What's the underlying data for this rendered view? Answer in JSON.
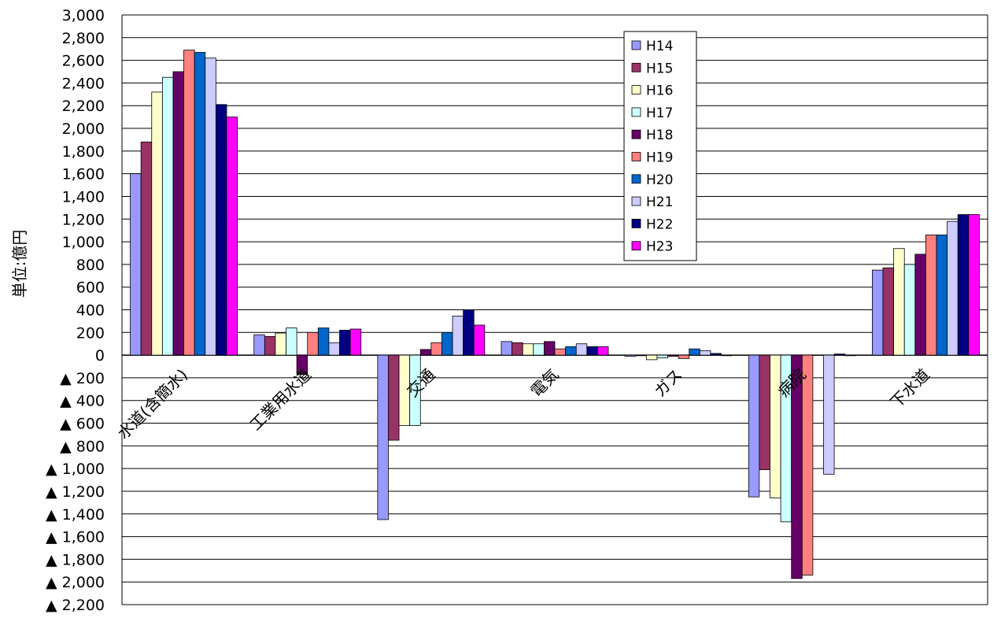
{
  "chart_data": {
    "type": "bar",
    "ylabel": "単位:億円",
    "ylim": [
      -2200,
      3000
    ],
    "ytick_step": 200,
    "grid": true,
    "legend_position": "top-right",
    "categories": [
      "水道(含簡水)",
      "工業用水道",
      "交通",
      "電気",
      "ガス",
      "病院",
      "下水道"
    ],
    "yticks": [
      {
        "value": 3000,
        "label": "3,000"
      },
      {
        "value": 2800,
        "label": "2,800"
      },
      {
        "value": 2600,
        "label": "2,600"
      },
      {
        "value": 2400,
        "label": "2,400"
      },
      {
        "value": 2200,
        "label": "2,200"
      },
      {
        "value": 2000,
        "label": "2,000"
      },
      {
        "value": 1800,
        "label": "1,800"
      },
      {
        "value": 1600,
        "label": "1,600"
      },
      {
        "value": 1400,
        "label": "1,400"
      },
      {
        "value": 1200,
        "label": "1,200"
      },
      {
        "value": 1000,
        "label": "1,000"
      },
      {
        "value": 800,
        "label": "800"
      },
      {
        "value": 600,
        "label": "600"
      },
      {
        "value": 400,
        "label": "400"
      },
      {
        "value": 200,
        "label": "200"
      },
      {
        "value": 0,
        "label": "0"
      },
      {
        "value": -200,
        "label": "▲ 200"
      },
      {
        "value": -400,
        "label": "▲ 400"
      },
      {
        "value": -600,
        "label": "▲ 600"
      },
      {
        "value": -800,
        "label": "▲ 800"
      },
      {
        "value": -1000,
        "label": "▲ 1,000"
      },
      {
        "value": -1200,
        "label": "▲ 1,200"
      },
      {
        "value": -1400,
        "label": "▲ 1,400"
      },
      {
        "value": -1600,
        "label": "▲ 1,600"
      },
      {
        "value": -1800,
        "label": "▲ 1,800"
      },
      {
        "value": -2000,
        "label": "▲ 2,000"
      },
      {
        "value": -2200,
        "label": "▲ 2,200"
      }
    ],
    "series": [
      {
        "name": "H14",
        "color": "#9999ff",
        "values": [
          1600,
          180,
          -1450,
          120,
          -10,
          -1250,
          750
        ]
      },
      {
        "name": "H15",
        "color": "#993366",
        "values": [
          1880,
          165,
          -750,
          110,
          -5,
          -1010,
          770
        ]
      },
      {
        "name": "H16",
        "color": "#ffffcc",
        "values": [
          2320,
          195,
          -620,
          100,
          -40,
          -1260,
          940
        ]
      },
      {
        "name": "H17",
        "color": "#ccffff",
        "values": [
          2450,
          240,
          -620,
          100,
          -25,
          -1470,
          800
        ]
      },
      {
        "name": "H18",
        "color": "#660066",
        "values": [
          2500,
          -170,
          50,
          120,
          -10,
          -1970,
          890
        ]
      },
      {
        "name": "H19",
        "color": "#ff8080",
        "values": [
          2690,
          200,
          110,
          55,
          -30,
          -1940,
          1060
        ]
      },
      {
        "name": "H20",
        "color": "#0066cc",
        "values": [
          2670,
          240,
          200,
          75,
          55,
          0,
          1060
        ]
      },
      {
        "name": "H21",
        "color": "#ccccff",
        "values": [
          2620,
          110,
          345,
          100,
          40,
          -1050,
          1180
        ]
      },
      {
        "name": "H22",
        "color": "#000080",
        "values": [
          2210,
          220,
          400,
          75,
          15,
          10,
          1240
        ]
      },
      {
        "name": "H23",
        "color": "#ff00ff",
        "values": [
          2100,
          230,
          265,
          75,
          -5,
          -5,
          1240
        ]
      }
    ]
  }
}
